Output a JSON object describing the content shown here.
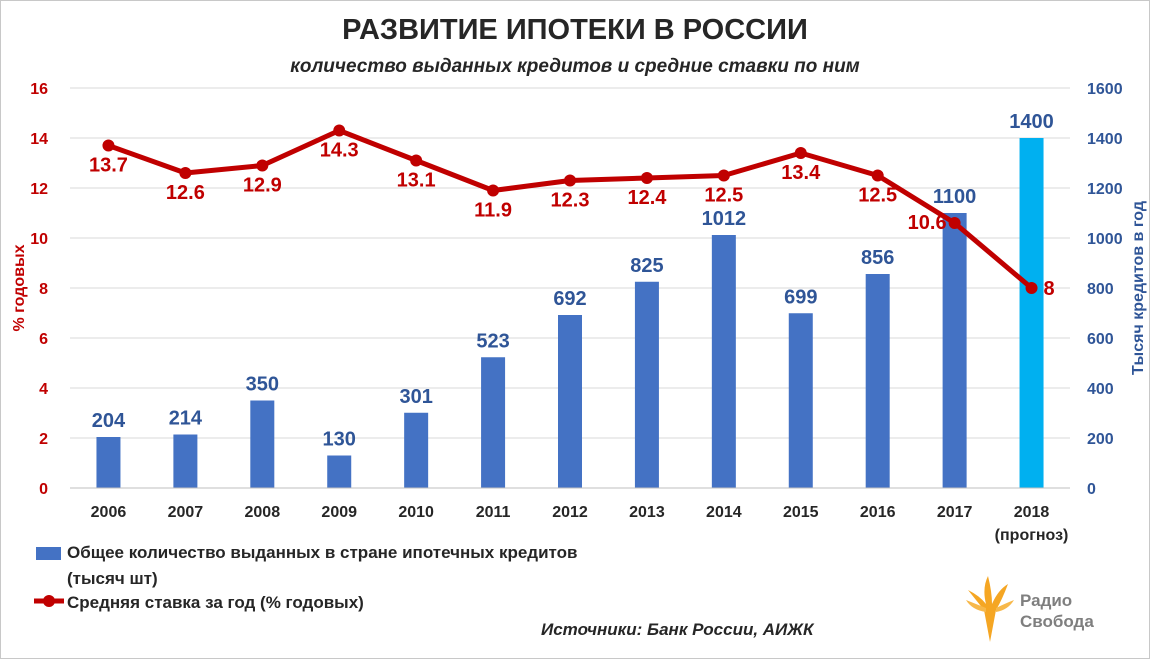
{
  "chart_data": {
    "type": "bar",
    "title": "РАЗВИТИЕ ИПОТЕКИ В РОССИИ",
    "subtitle": "количество выданных кредитов и средние ставки по ним",
    "categories": [
      "2006",
      "2007",
      "2008",
      "2009",
      "2010",
      "2011",
      "2012",
      "2013",
      "2014",
      "2015",
      "2016",
      "2017",
      "2018"
    ],
    "category_note": "(прогноз)",
    "ylabel_left": "% годовых",
    "ylabel_right": "Тысяч кредитов в год",
    "ylim_left": [
      0,
      16
    ],
    "yticks_left": [
      "0",
      "2",
      "4",
      "6",
      "8",
      "10",
      "12",
      "14",
      "16"
    ],
    "ylim_right": [
      0,
      1600
    ],
    "yticks_right": [
      "0",
      "200",
      "400",
      "600",
      "800",
      "1000",
      "1200",
      "1400",
      "1600"
    ],
    "grid": true,
    "series": [
      {
        "name": "Общее количество выданных в стране ипотечных кредитов (тысяч шт)",
        "type": "bar",
        "axis": "right",
        "values": [
          204,
          214,
          350,
          130,
          301,
          523,
          692,
          825,
          1012,
          699,
          856,
          1100,
          1400
        ],
        "labels": [
          "204",
          "214",
          "350",
          "130",
          "301",
          "523",
          "692",
          "825",
          "1012",
          "699",
          "856",
          "1100",
          "1400"
        ],
        "color": "#4472c4",
        "highlight_color": "#00b0f0",
        "highlight_index": 12
      },
      {
        "name": "Средняя ставка за год (% годовых)",
        "type": "line",
        "axis": "left",
        "values": [
          13.7,
          12.6,
          12.9,
          14.3,
          13.1,
          11.9,
          12.3,
          12.4,
          12.5,
          13.4,
          12.5,
          10.6,
          8
        ],
        "labels": [
          "13.7",
          "12.6",
          "12.9",
          "14.3",
          "13.1",
          "11.9",
          "12.3",
          "12.4",
          "12.5",
          "13.4",
          "12.5",
          "10.6",
          "8"
        ],
        "color": "#c00000"
      }
    ],
    "legend_position": "bottom-left"
  },
  "legend": {
    "bar_line1": "Общее количество выданных  в стране  ипотечных кредитов",
    "bar_line2": "(тысяч шт)",
    "line_label": "Средняя ставка за год (% годовых)"
  },
  "source": "Источники: Банк России, АИЖК",
  "logo": {
    "line1": "Радио",
    "line2": "Свобода",
    "color": "#f5a623"
  }
}
